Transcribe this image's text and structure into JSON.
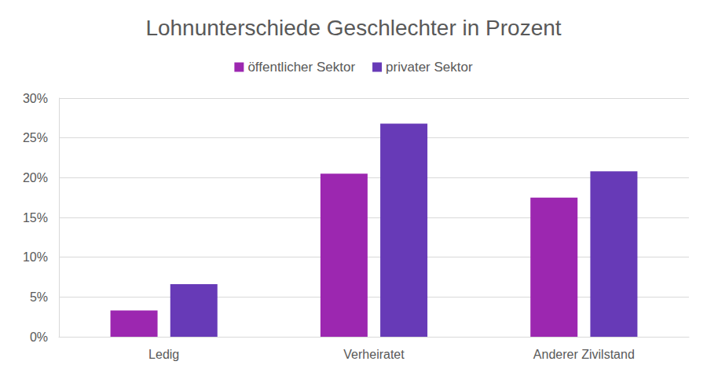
{
  "chart_data": {
    "type": "bar",
    "title": "Lohnunterschiede Geschlechter in Prozent",
    "categories": [
      "Ledig",
      "Verheiratet",
      "Anderer Zivilstand"
    ],
    "series": [
      {
        "name": "öffentlicher Sektor",
        "color": "#9c27b0",
        "values": [
          3.3,
          20.5,
          17.5
        ]
      },
      {
        "name": "privater Sektor",
        "color": "#673ab7",
        "values": [
          6.6,
          26.8,
          20.8
        ]
      }
    ],
    "ylim": [
      0,
      30
    ],
    "yticks": [
      {
        "value": 0,
        "label": "0%"
      },
      {
        "value": 5,
        "label": "5%"
      },
      {
        "value": 10,
        "label": "10%"
      },
      {
        "value": 15,
        "label": "15%"
      },
      {
        "value": 20,
        "label": "20%"
      },
      {
        "value": 25,
        "label": "25%"
      },
      {
        "value": 30,
        "label": "30%"
      }
    ],
    "grid": true,
    "legend": "top"
  }
}
